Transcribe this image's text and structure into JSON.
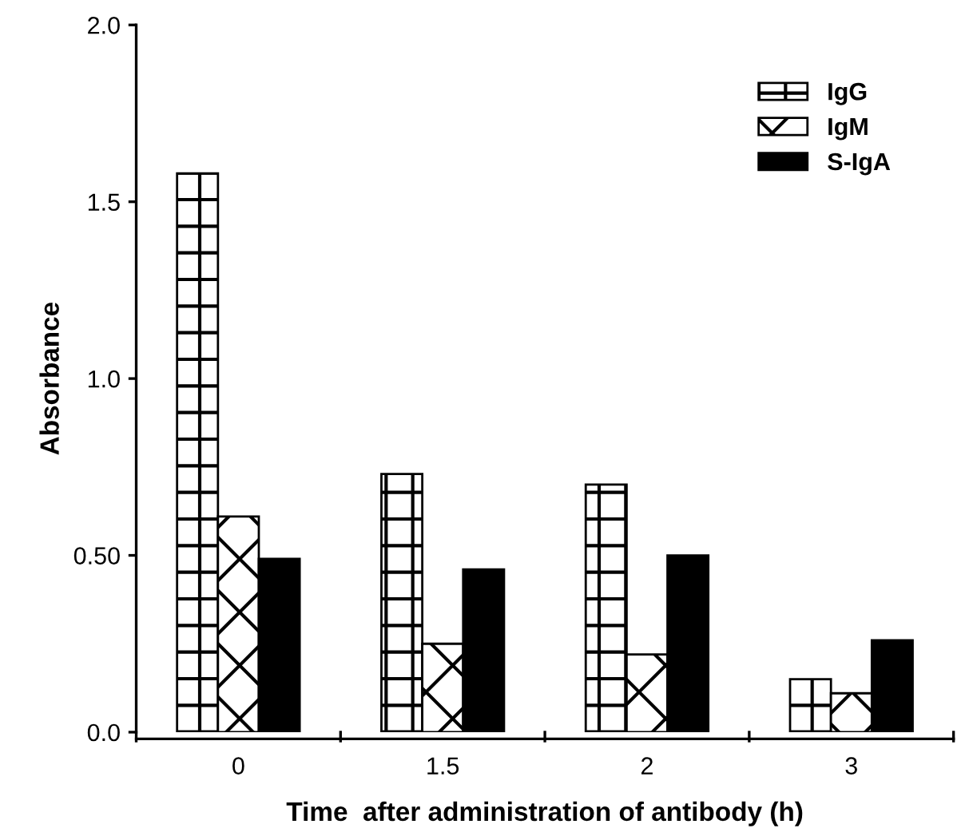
{
  "chart_data": {
    "type": "bar",
    "xlabel": "Time  after administration of antibody (h)",
    "ylabel": "Absorbance",
    "categories": [
      "0",
      "1.5",
      "2",
      "3"
    ],
    "series": [
      {
        "name": "IgG",
        "color": "#000000",
        "values": [
          1.58,
          0.73,
          0.7,
          0.15
        ]
      },
      {
        "name": "IgM",
        "color": "#000000",
        "values": [
          0.61,
          0.25,
          0.22,
          0.11
        ]
      },
      {
        "name": "S-IgA",
        "color": "#000000",
        "values": [
          0.49,
          0.46,
          0.5,
          0.26
        ]
      }
    ],
    "ylim": [
      0,
      2.0
    ],
    "yticks": [
      {
        "value": 0,
        "label": "0.0"
      },
      {
        "value": 0.5,
        "label": "0.50"
      },
      {
        "value": 1.0,
        "label": "1.0"
      },
      {
        "value": 1.5,
        "label": "1.5"
      },
      {
        "value": 2.0,
        "label": "2.0"
      }
    ],
    "legend": "top right",
    "grid": false
  }
}
